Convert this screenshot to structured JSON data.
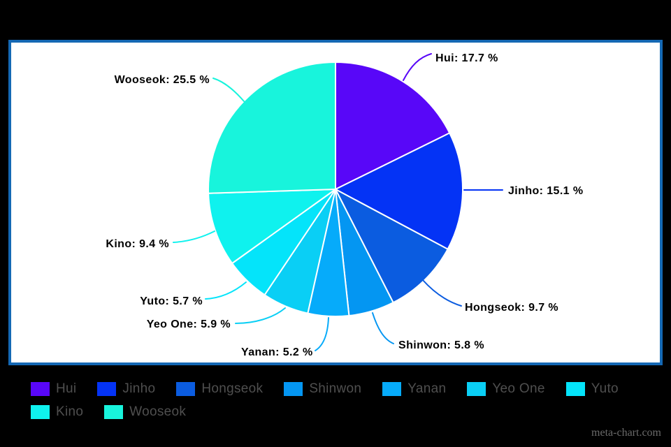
{
  "page": {
    "background": "#000000"
  },
  "panel": {
    "background": "#ffffff",
    "border_color": "#1468b4"
  },
  "chart_data": {
    "type": "pie",
    "title": "",
    "categories": [
      "Hui",
      "Jinho",
      "Hongseok",
      "Shinwon",
      "Yanan",
      "Yeo One",
      "Yuto",
      "Kino",
      "Wooseok"
    ],
    "values": [
      17.7,
      15.1,
      9.7,
      5.8,
      5.2,
      5.9,
      5.7,
      9.4,
      25.5
    ],
    "colors": [
      "#5807f8",
      "#0433f5",
      "#0b5ce0",
      "#0496f2",
      "#06abfa",
      "#0acff5",
      "#04e4fa",
      "#0ff2ee",
      "#18f4dc"
    ],
    "labels": [
      "Hui: 17.7 %",
      "Jinho: 15.1 %",
      "Hongseok: 9.7 %",
      "Shinwon: 5.8 %",
      "Yanan: 5.2 %",
      "Yeo One: 5.9 %",
      "Yuto: 5.7 %",
      "Kino: 9.4 %",
      "Wooseok: 25.5 %"
    ],
    "slice_border_color": "#ffffff",
    "label_color": "#000000",
    "start_angle_deg": 0,
    "direction": "clockwise",
    "legend_position": "bottom",
    "legend_text_color": "#4f4f4f"
  },
  "watermark": "meta-chart.com"
}
